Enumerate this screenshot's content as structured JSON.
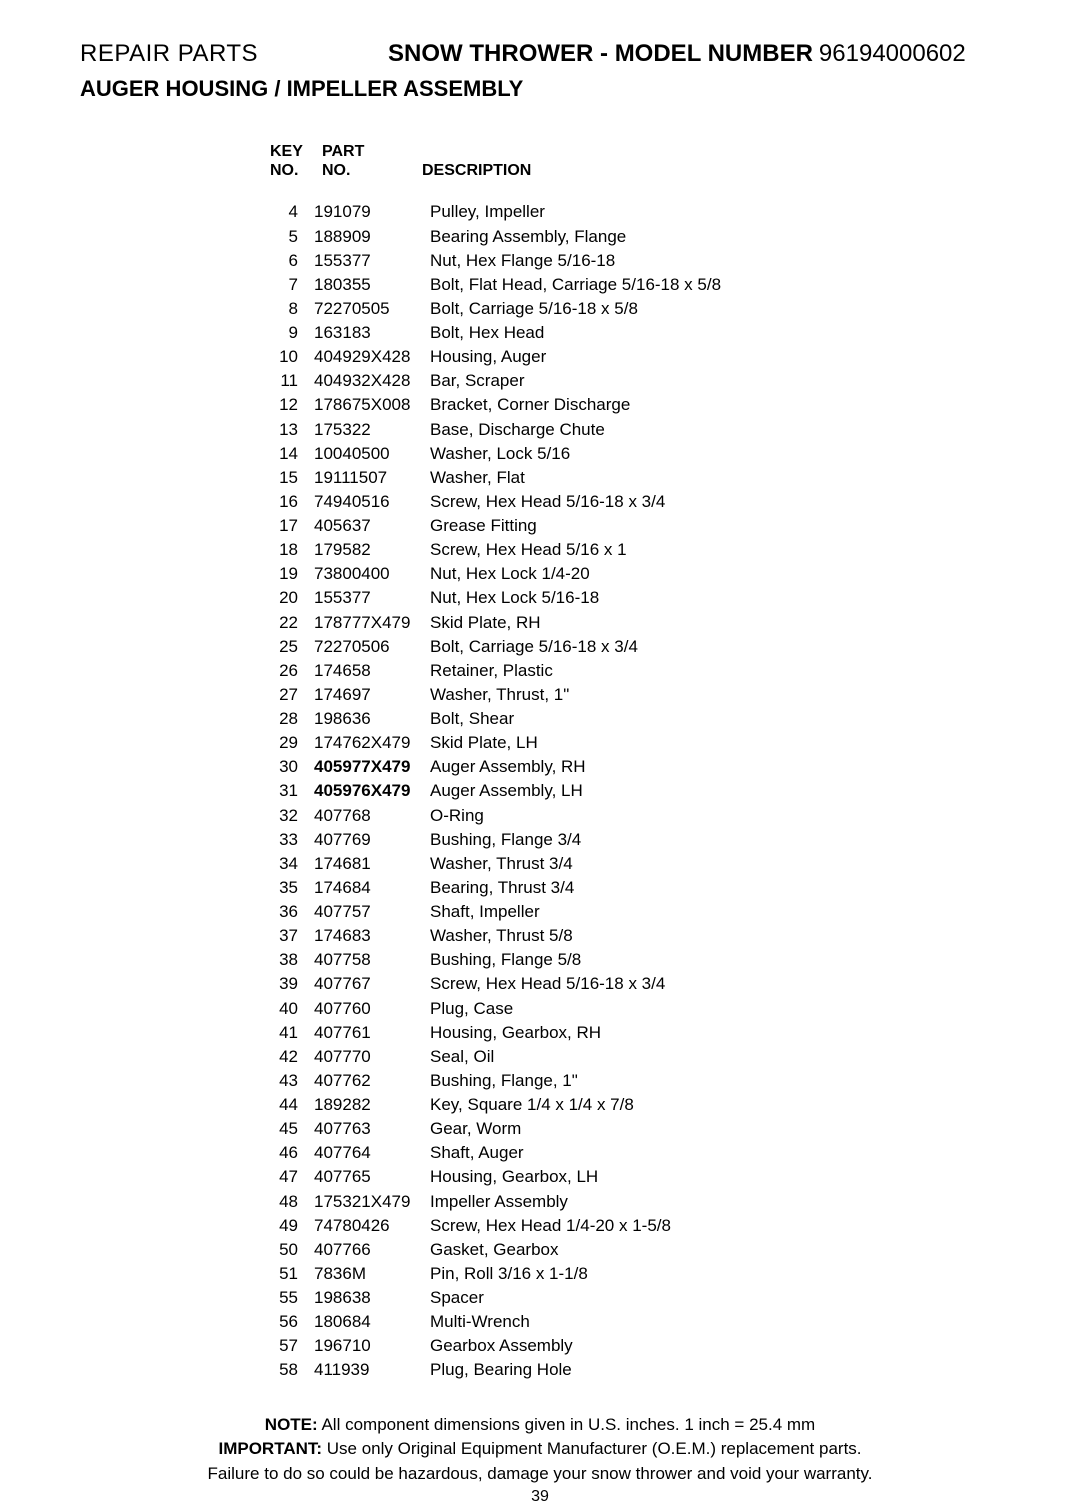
{
  "header": {
    "repair_parts": "REPAIR PARTS",
    "model_title": "SNOW THROWER - MODEL NUMBER",
    "model_number": "96194000602",
    "assembly": "AUGER HOUSING / IMPELLER ASSEMBLY"
  },
  "columns": {
    "key_line1": "KEY",
    "key_line2": "NO.",
    "part_line1": "PART",
    "part_line2": "NO.",
    "desc": "DESCRIPTION"
  },
  "rows": [
    {
      "key": "4",
      "part": "191079",
      "desc": "Pulley, Impeller",
      "bold": false
    },
    {
      "key": "5",
      "part": "188909",
      "desc": "Bearing Assembly, Flange",
      "bold": false
    },
    {
      "key": "6",
      "part": "155377",
      "desc": "Nut, Hex Flange  5/16-18",
      "bold": false
    },
    {
      "key": "7",
      "part": "180355",
      "desc": "Bolt, Flat Head, Carriage  5/16-18 x 5/8",
      "bold": false
    },
    {
      "key": "8",
      "part": "72270505",
      "desc": "Bolt, Carriage  5/16-18 x 5/8",
      "bold": false
    },
    {
      "key": "9",
      "part": "163183",
      "desc": "Bolt, Hex Head",
      "bold": false
    },
    {
      "key": "10",
      "part": "404929X428",
      "desc": "Housing, Auger",
      "bold": false
    },
    {
      "key": "11",
      "part": "404932X428",
      "desc": "Bar, Scraper",
      "bold": false
    },
    {
      "key": "12",
      "part": "178675X008",
      "desc": "Bracket, Corner Discharge",
      "bold": false
    },
    {
      "key": "13",
      "part": "175322",
      "desc": "Base, Discharge Chute",
      "bold": false
    },
    {
      "key": "14",
      "part": "10040500",
      "desc": "Washer, Lock  5/16",
      "bold": false
    },
    {
      "key": "15",
      "part": "19111507",
      "desc": "Washer, Flat",
      "bold": false
    },
    {
      "key": "16",
      "part": "74940516",
      "desc": "Screw, Hex Head  5/16-18 x 3/4",
      "bold": false
    },
    {
      "key": "17",
      "part": "405637",
      "desc": "Grease Fitting",
      "bold": false
    },
    {
      "key": "18",
      "part": "179582",
      "desc": "Screw, Hex Head  5/16 x 1",
      "bold": false
    },
    {
      "key": "19",
      "part": "73800400",
      "desc": "Nut, Hex Lock  1/4-20",
      "bold": false
    },
    {
      "key": "20",
      "part": "155377",
      "desc": "Nut, Hex Lock  5/16-18",
      "bold": false
    },
    {
      "key": "22",
      "part": "178777X479",
      "desc": "Skid Plate, RH",
      "bold": false
    },
    {
      "key": "25",
      "part": "72270506",
      "desc": "Bolt, Carriage  5/16-18 x 3/4",
      "bold": false
    },
    {
      "key": "26",
      "part": "174658",
      "desc": "Retainer, Plastic",
      "bold": false
    },
    {
      "key": "27",
      "part": "174697",
      "desc": "Washer, Thrust, 1\"",
      "bold": false
    },
    {
      "key": "28",
      "part": "198636",
      "desc": "Bolt, Shear",
      "bold": false
    },
    {
      "key": "29",
      "part": "174762X479",
      "desc": "Skid Plate, LH",
      "bold": false
    },
    {
      "key": "30",
      "part": "405977X479",
      "desc": "Auger Assembly, RH",
      "bold": true
    },
    {
      "key": "31",
      "part": "405976X479",
      "desc": "Auger Assembly, LH",
      "bold": true
    },
    {
      "key": "32",
      "part": "407768",
      "desc": "O-Ring",
      "bold": false
    },
    {
      "key": "33",
      "part": "407769",
      "desc": "Bushing, Flange  3/4",
      "bold": false
    },
    {
      "key": "34",
      "part": "174681",
      "desc": "Washer, Thrust  3/4",
      "bold": false
    },
    {
      "key": "35",
      "part": "174684",
      "desc": "Bearing, Thrust  3/4",
      "bold": false
    },
    {
      "key": "36",
      "part": "407757",
      "desc": "Shaft, Impeller",
      "bold": false
    },
    {
      "key": "37",
      "part": "174683",
      "desc": "Washer, Thrust  5/8",
      "bold": false
    },
    {
      "key": "38",
      "part": "407758",
      "desc": "Bushing, Flange  5/8",
      "bold": false
    },
    {
      "key": "39",
      "part": "407767",
      "desc": "Screw, Hex Head  5/16-18 x 3/4",
      "bold": false
    },
    {
      "key": "40",
      "part": "407760",
      "desc": "Plug, Case",
      "bold": false
    },
    {
      "key": "41",
      "part": "407761",
      "desc": "Housing, Gearbox, RH",
      "bold": false
    },
    {
      "key": "42",
      "part": "407770",
      "desc": "Seal, Oil",
      "bold": false
    },
    {
      "key": "43",
      "part": "407762",
      "desc": "Bushing, Flange, 1\"",
      "bold": false
    },
    {
      "key": "44",
      "part": "189282",
      "desc": "Key, Square  1/4 x 1/4 x 7/8",
      "bold": false
    },
    {
      "key": "45",
      "part": "407763",
      "desc": "Gear, Worm",
      "bold": false
    },
    {
      "key": "46",
      "part": "407764",
      "desc": "Shaft, Auger",
      "bold": false
    },
    {
      "key": "47",
      "part": "407765",
      "desc": "Housing, Gearbox, LH",
      "bold": false
    },
    {
      "key": "48",
      "part": "175321X479",
      "desc": "Impeller Assembly",
      "bold": false
    },
    {
      "key": "49",
      "part": "74780426",
      "desc": "Screw, Hex Head  1/4-20 x 1-5/8",
      "bold": false
    },
    {
      "key": "50",
      "part": "407766",
      "desc": "Gasket, Gearbox",
      "bold": false
    },
    {
      "key": "51",
      "part": "7836M",
      "desc": "Pin, Roll  3/16 x 1-1/8",
      "bold": false
    },
    {
      "key": "55",
      "part": "198638",
      "desc": "Spacer",
      "bold": false
    },
    {
      "key": "56",
      "part": "180684",
      "desc": "Multi-Wrench",
      "bold": false
    },
    {
      "key": "57",
      "part": "196710",
      "desc": "Gearbox Assembly",
      "bold": false
    },
    {
      "key": "58",
      "part": "411939",
      "desc": "Plug, Bearing Hole",
      "bold": false
    }
  ],
  "footer": {
    "note_label": "NOTE:",
    "note_text": "  All component dimensions given in U.S. inches.    1 inch = 25.4 mm",
    "important_label": "IMPORTANT:",
    "important_text": " Use only Original Equipment Manufacturer (O.E.M.) replacement parts.",
    "warning": "Failure to do so could be hazardous, damage your snow thrower and void your warranty.",
    "page": "39"
  }
}
